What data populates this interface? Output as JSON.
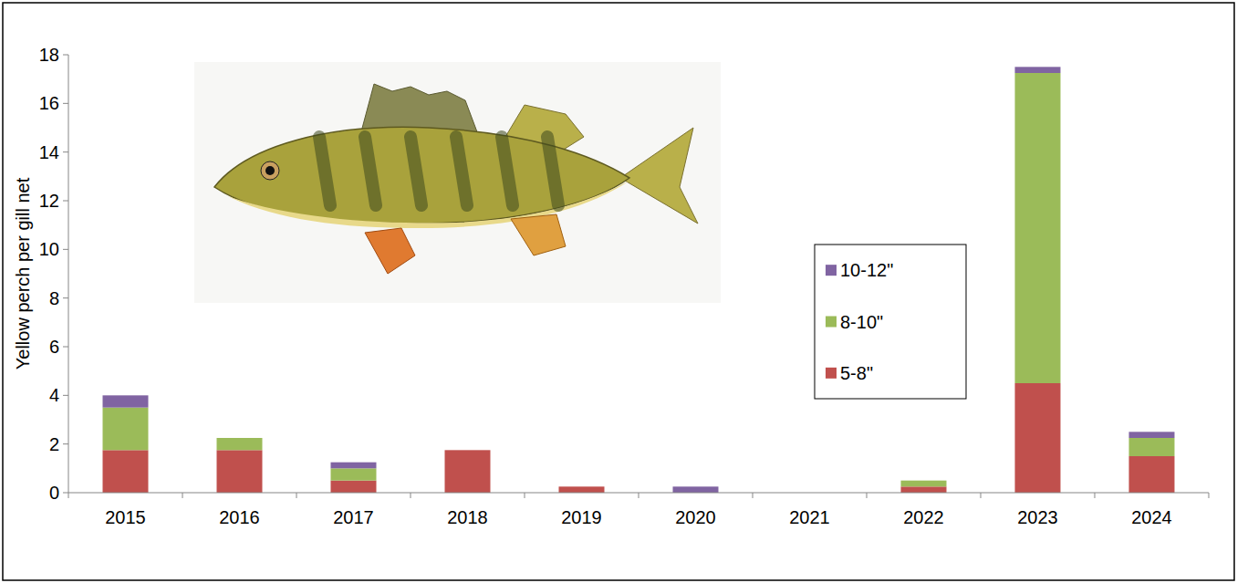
{
  "chart_data": {
    "type": "bar",
    "stacked": true,
    "y_label": "Yellow perch per gill net",
    "categories": [
      "2015",
      "2016",
      "2017",
      "2018",
      "2019",
      "2020",
      "2021",
      "2022",
      "2023",
      "2024"
    ],
    "series": [
      {
        "name": "5-8\"",
        "color": "#c0504d",
        "values": [
          1.75,
          1.75,
          0.5,
          1.75,
          0.25,
          0,
          0,
          0.25,
          4.5,
          1.5
        ]
      },
      {
        "name": "8-10\"",
        "color": "#9bbb59",
        "values": [
          1.75,
          0.5,
          0.5,
          0,
          0,
          0,
          0,
          0.25,
          12.75,
          0.75
        ]
      },
      {
        "name": "10-12\"",
        "color": "#8064a2",
        "values": [
          0.5,
          0,
          0.25,
          0,
          0,
          0.25,
          0,
          0,
          0.25,
          0.25
        ]
      }
    ],
    "ylim": [
      0,
      18
    ],
    "yticks": [
      0,
      2,
      4,
      6,
      8,
      10,
      12,
      14,
      16,
      18
    ],
    "grid": false,
    "legend": "right"
  }
}
